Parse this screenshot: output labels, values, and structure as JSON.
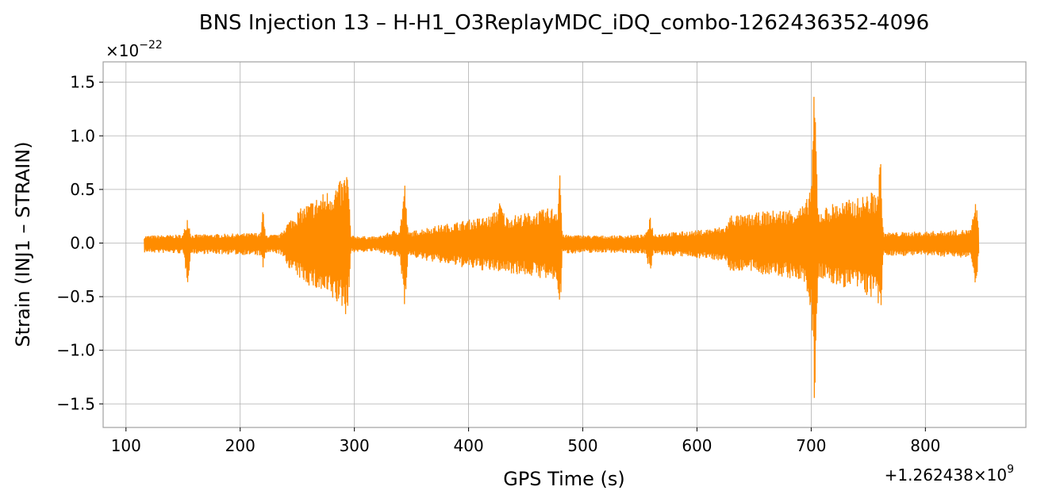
{
  "chart_data": {
    "type": "line",
    "title": "BNS Injection 13 – H-H1_O3ReplayMDC_iDQ_combo-1262436352-4096",
    "xlabel": "GPS Time (s)",
    "ylabel": "Strain (INJ1 – STRAIN)",
    "x_offset_label": "+1.262438×10",
    "x_offset_exponent": "9",
    "y_scale_label": "×10",
    "y_scale_exponent": "−22",
    "xlim": [
      80,
      888
    ],
    "ylim": [
      -1.72,
      1.69
    ],
    "x_ticks": [
      100,
      200,
      300,
      400,
      500,
      600,
      700,
      800
    ],
    "x_tick_labels": [
      "100",
      "200",
      "300",
      "400",
      "500",
      "600",
      "700",
      "800"
    ],
    "y_ticks": [
      -1.5,
      -1.0,
      -0.5,
      0.0,
      0.5,
      1.0,
      1.5
    ],
    "y_tick_labels": [
      "−1.5",
      "−1.0",
      "−0.5",
      "0.0",
      "0.5",
      "1.0",
      "1.5"
    ],
    "grid": true,
    "color": "#ff8c00",
    "series": [
      {
        "x_range": [
          116,
          847
        ],
        "envelope_upper": [
          [
            116,
            0.07
          ],
          [
            150,
            0.08
          ],
          [
            154,
            0.27
          ],
          [
            157,
            0.08
          ],
          [
            200,
            0.09
          ],
          [
            218,
            0.1
          ],
          [
            220,
            0.35
          ],
          [
            222,
            0.08
          ],
          [
            235,
            0.08
          ],
          [
            240,
            0.18
          ],
          [
            250,
            0.3
          ],
          [
            260,
            0.38
          ],
          [
            270,
            0.45
          ],
          [
            280,
            0.52
          ],
          [
            290,
            0.6
          ],
          [
            294,
            0.72
          ],
          [
            297,
            0.07
          ],
          [
            320,
            0.06
          ],
          [
            340,
            0.14
          ],
          [
            344,
            0.6
          ],
          [
            347,
            0.1
          ],
          [
            360,
            0.14
          ],
          [
            380,
            0.18
          ],
          [
            400,
            0.22
          ],
          [
            420,
            0.26
          ],
          [
            428,
            0.4
          ],
          [
            432,
            0.25
          ],
          [
            460,
            0.3
          ],
          [
            478,
            0.35
          ],
          [
            480,
            0.8
          ],
          [
            482,
            0.08
          ],
          [
            520,
            0.07
          ],
          [
            555,
            0.08
          ],
          [
            559,
            0.28
          ],
          [
            562,
            0.09
          ],
          [
            600,
            0.12
          ],
          [
            625,
            0.16
          ],
          [
            630,
            0.28
          ],
          [
            640,
            0.26
          ],
          [
            660,
            0.3
          ],
          [
            680,
            0.32
          ],
          [
            695,
            0.36
          ],
          [
            700,
            0.6
          ],
          [
            703,
            1.55
          ],
          [
            706,
            0.3
          ],
          [
            720,
            0.38
          ],
          [
            740,
            0.42
          ],
          [
            758,
            0.5
          ],
          [
            761,
            0.84
          ],
          [
            763,
            0.1
          ],
          [
            800,
            0.11
          ],
          [
            840,
            0.13
          ],
          [
            844,
            0.43
          ],
          [
            847,
            0.12
          ]
        ],
        "envelope_lower": [
          [
            116,
            -0.09
          ],
          [
            150,
            -0.1
          ],
          [
            154,
            -0.38
          ],
          [
            157,
            -0.1
          ],
          [
            200,
            -0.11
          ],
          [
            218,
            -0.12
          ],
          [
            220,
            -0.28
          ],
          [
            222,
            -0.1
          ],
          [
            235,
            -0.1
          ],
          [
            240,
            -0.2
          ],
          [
            250,
            -0.32
          ],
          [
            260,
            -0.4
          ],
          [
            270,
            -0.47
          ],
          [
            280,
            -0.54
          ],
          [
            290,
            -0.62
          ],
          [
            294,
            -0.72
          ],
          [
            297,
            -0.09
          ],
          [
            320,
            -0.08
          ],
          [
            340,
            -0.15
          ],
          [
            344,
            -0.62
          ],
          [
            347,
            -0.12
          ],
          [
            360,
            -0.16
          ],
          [
            380,
            -0.2
          ],
          [
            400,
            -0.24
          ],
          [
            420,
            -0.27
          ],
          [
            428,
            -0.27
          ],
          [
            460,
            -0.32
          ],
          [
            478,
            -0.38
          ],
          [
            480,
            -0.77
          ],
          [
            482,
            -0.1
          ],
          [
            520,
            -0.09
          ],
          [
            555,
            -0.1
          ],
          [
            559,
            -0.3
          ],
          [
            562,
            -0.11
          ],
          [
            600,
            -0.14
          ],
          [
            625,
            -0.17
          ],
          [
            630,
            -0.28
          ],
          [
            640,
            -0.26
          ],
          [
            660,
            -0.3
          ],
          [
            680,
            -0.33
          ],
          [
            695,
            -0.38
          ],
          [
            700,
            -0.7
          ],
          [
            703,
            -1.57
          ],
          [
            706,
            -0.32
          ],
          [
            720,
            -0.4
          ],
          [
            740,
            -0.44
          ],
          [
            758,
            -0.55
          ],
          [
            761,
            -0.76
          ],
          [
            763,
            -0.12
          ],
          [
            800,
            -0.12
          ],
          [
            840,
            -0.14
          ],
          [
            844,
            -0.4
          ],
          [
            847,
            -0.13
          ]
        ]
      }
    ]
  }
}
